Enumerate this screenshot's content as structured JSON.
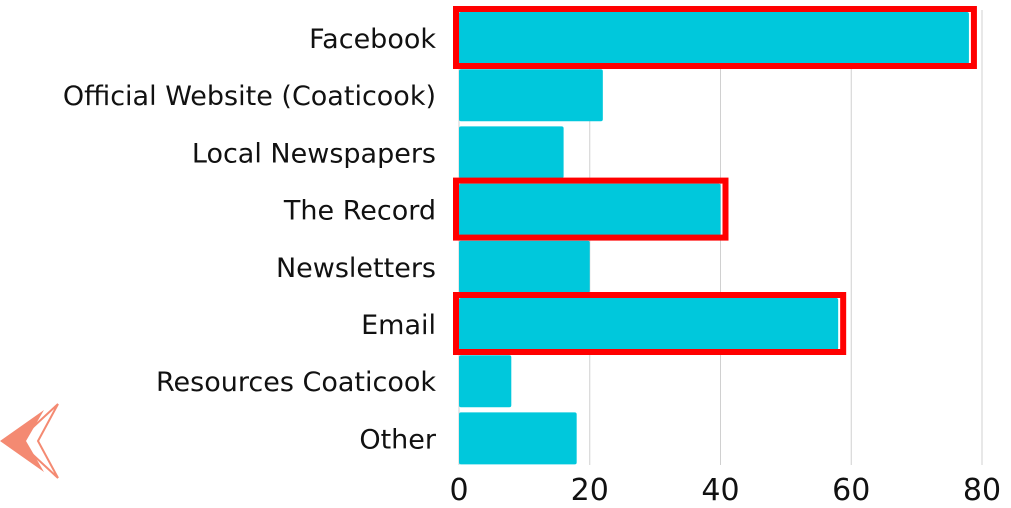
{
  "chart_data": {
    "type": "bar",
    "orientation": "horizontal",
    "categories": [
      "Facebook",
      "Official Website (Coaticook)",
      "Local Newspapers",
      "The Record",
      "Newsletters",
      "Email",
      "Resources Coaticook",
      "Other"
    ],
    "values": [
      78,
      22,
      16,
      40,
      20,
      58,
      8,
      18
    ],
    "highlighted": [
      true,
      false,
      false,
      true,
      false,
      true,
      false,
      false
    ],
    "title": "",
    "xlabel": "",
    "ylabel": "",
    "xlim": [
      0,
      80
    ],
    "x_ticks": [
      0,
      20,
      40,
      60,
      80
    ],
    "grid": "vertical",
    "legend": "none",
    "colors": {
      "bar": "#00c8dc",
      "highlight_border": "#ff0000",
      "grid": "#d0d0d0",
      "decoration": "#f48a72"
    }
  },
  "decorations": {
    "left_arrow_icon": "chevron-arrow-icon"
  }
}
